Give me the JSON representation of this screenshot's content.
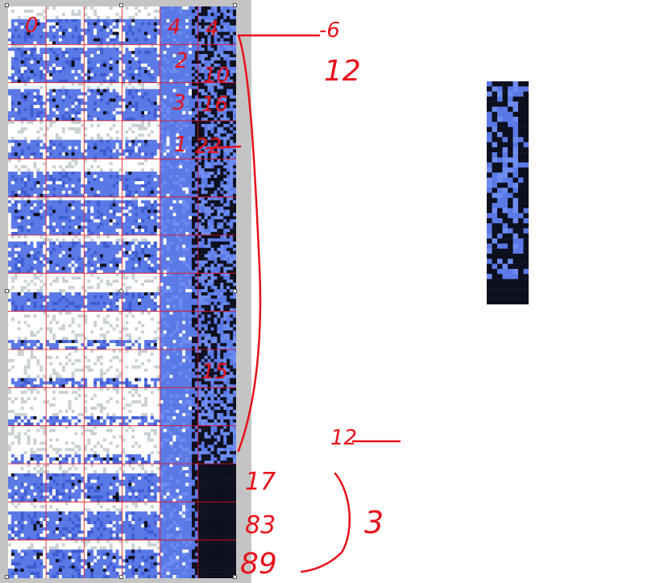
{
  "colors": {
    "editor_background": "#c4c4c4",
    "snow_white": "#ffffff",
    "snow_grey": "#c9d1d4",
    "ice_blue": "#5a78e6",
    "ice_blue_dark": "#3e5bd2",
    "ice_blue_light": "#6d8cf0",
    "cave_black": "#0b0f1e",
    "grid_line": "#e8111a",
    "annotation_red": "#e8111a"
  },
  "spritesheet": {
    "columns": 6,
    "rows": 15,
    "column_kinds": [
      "snow",
      "snow",
      "snow",
      "snow",
      "ice_edge",
      "ice_dark"
    ]
  },
  "annotations": {
    "tile_labels": [
      "0",
      "4",
      "4",
      "2",
      "10",
      "3",
      "16",
      "1",
      "22",
      "15"
    ],
    "side_notes": [
      "-6",
      "12",
      "12",
      "17",
      "83",
      "89",
      "3"
    ]
  },
  "icons": [
    "selection-handle-icon"
  ]
}
